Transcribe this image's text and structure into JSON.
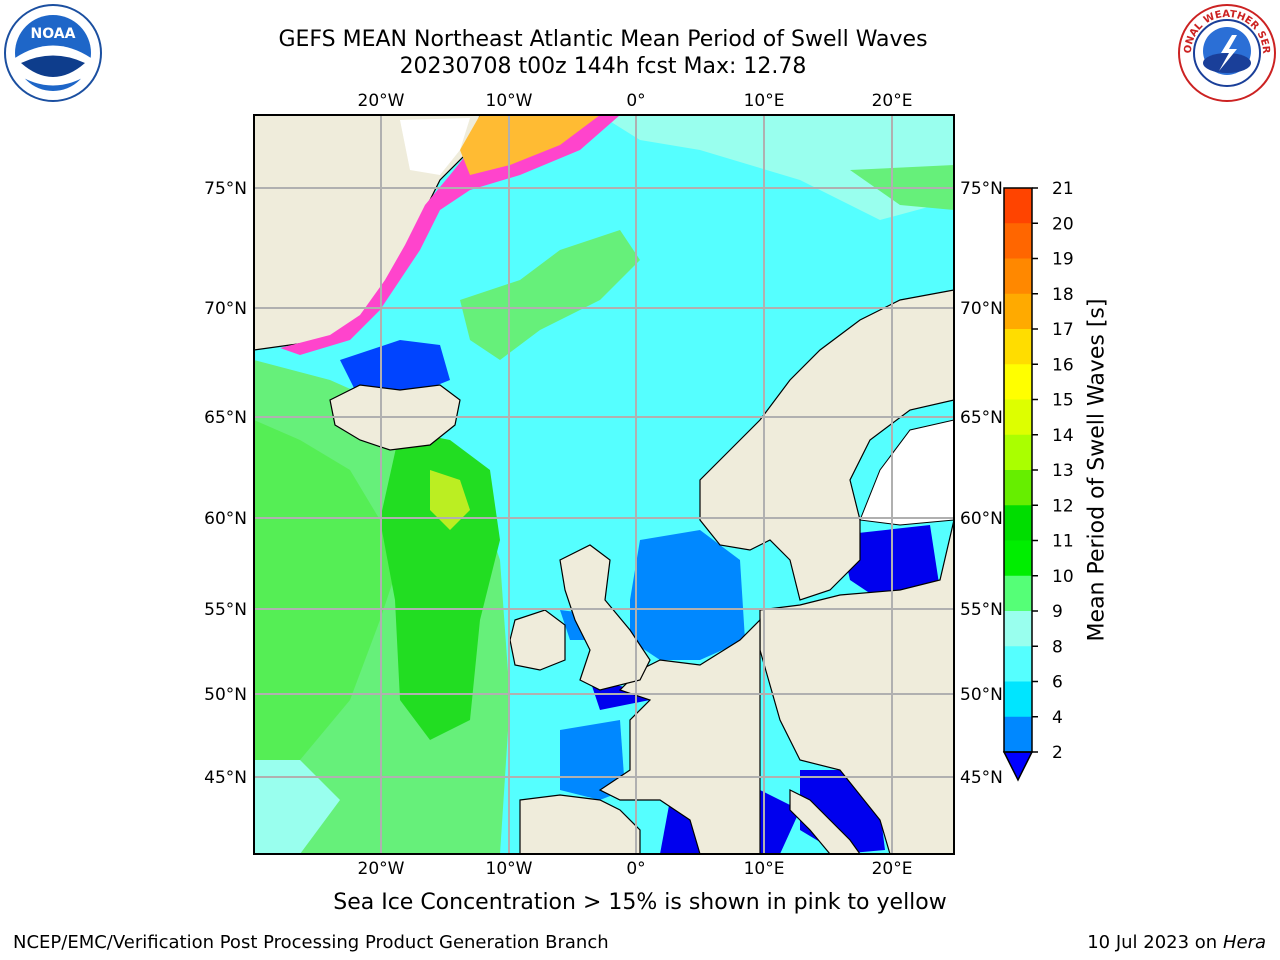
{
  "title_line1": "GEFS MEAN Northeast Atlantic Mean Period of Swell Waves",
  "title_line2": "20230708 t00z 144h fcst   Max: 12.78",
  "logos": {
    "left": "NOAA",
    "right": "NATIONAL WEATHER SERVICE"
  },
  "map": {
    "lon_labels": [
      "20°W",
      "10°W",
      "0°",
      "10°E",
      "20°E"
    ],
    "lat_labels": [
      "75°N",
      "70°N",
      "65°N",
      "60°N",
      "55°N",
      "50°N",
      "45°N"
    ]
  },
  "colorbar": {
    "label": "Mean Period of Swell Waves [s]",
    "ticks": [
      "21",
      "20",
      "19",
      "18",
      "17",
      "16",
      "15",
      "14",
      "13",
      "12",
      "11",
      "10",
      "9",
      "8",
      "6",
      "4",
      "2"
    ],
    "colors": [
      "#ff0000",
      "#ff2200",
      "#ff4400",
      "#ff6600",
      "#ff8800",
      "#ffaa00",
      "#ffdd00",
      "#ffff00",
      "#ddff00",
      "#aaff00",
      "#66ee00",
      "#00dd00",
      "#00ee00",
      "#55ff77",
      "#99ffee",
      "#55ffff",
      "#00e5ff",
      "#0088ff",
      "#0000ff"
    ]
  },
  "caption": "Sea Ice Concentration > 15% is shown in pink to yellow",
  "footer_left": "NCEP/EMC/Verification Post Processing Product Generation Branch",
  "footer_right_date": "10 Jul 2023 on ",
  "footer_right_host": "Hera"
}
